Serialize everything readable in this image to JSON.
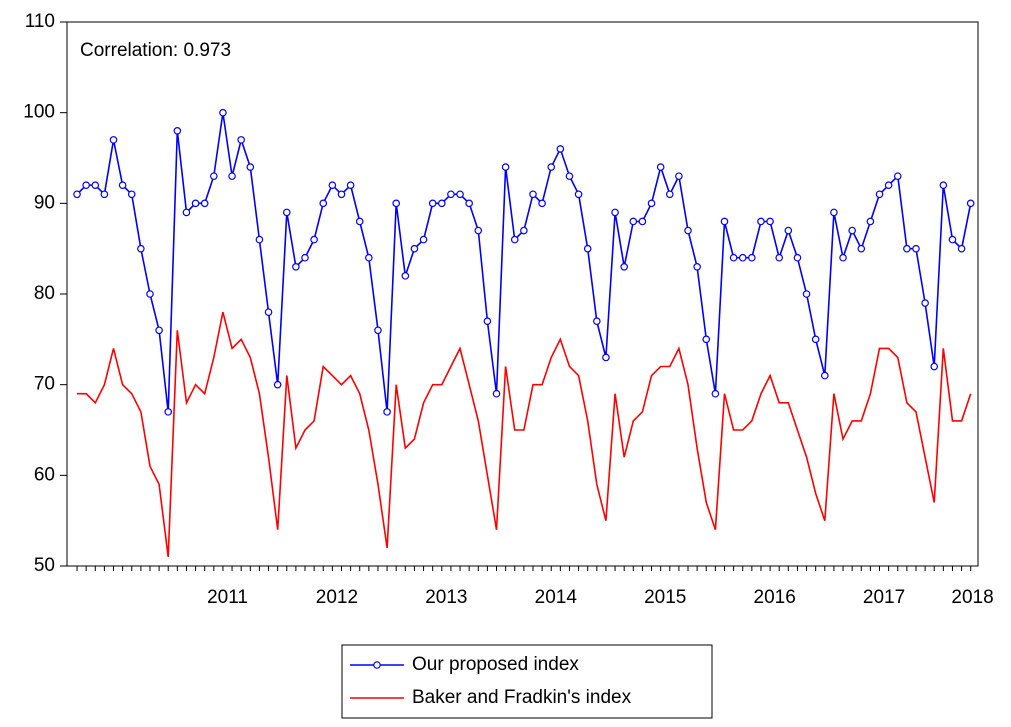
{
  "chart_data": {
    "type": "line",
    "annotation": "Correlation: 0.973",
    "categories": [
      null,
      null,
      null,
      null,
      null,
      null,
      null,
      null,
      null,
      null,
      null,
      null,
      null,
      null,
      null,
      null,
      null,
      null,
      null,
      null,
      null,
      null,
      null,
      null,
      null,
      null,
      null,
      null,
      null,
      null,
      null,
      null,
      null,
      null,
      null,
      null,
      null,
      null,
      null,
      null,
      null,
      null,
      null,
      null,
      null,
      null,
      null,
      null,
      null,
      null,
      null,
      null,
      null,
      null,
      null,
      null,
      null,
      null,
      null,
      null,
      null,
      null,
      null,
      null,
      null,
      null,
      null,
      null,
      null,
      null,
      null,
      null,
      null,
      null,
      null,
      null,
      null,
      null,
      null,
      null,
      null,
      null,
      null,
      null,
      null,
      null,
      null,
      null,
      null,
      null,
      null,
      null,
      null,
      null,
      null,
      null,
      null,
      null,
      null
    ],
    "xlim": [
      -1.1,
      98.8
    ],
    "xticks": [
      {
        "value": 16.5,
        "label": "2011"
      },
      {
        "value": 28.5,
        "label": "2012"
      },
      {
        "value": 40.5,
        "label": "2013"
      },
      {
        "value": 52.5,
        "label": "2014"
      },
      {
        "value": 64.5,
        "label": "2015"
      },
      {
        "value": 76.5,
        "label": "2016"
      },
      {
        "value": 88.5,
        "label": "2017"
      },
      {
        "value": 98.2,
        "label": "2018"
      }
    ],
    "ylim": [
      50,
      110
    ],
    "yticks": [
      50,
      60,
      70,
      80,
      90,
      100,
      110
    ],
    "legend": "bottom",
    "series": [
      {
        "name": "Our proposed index",
        "color": "#0000ff",
        "marker": "circle",
        "values": [
          91,
          92,
          92,
          91,
          97,
          92,
          91,
          85,
          80,
          76,
          67,
          98,
          89,
          90,
          90,
          93,
          100,
          93,
          97,
          94,
          86,
          78,
          70,
          89,
          83,
          84,
          86,
          90,
          92,
          91,
          92,
          88,
          84,
          76,
          67,
          90,
          82,
          85,
          86,
          90,
          90,
          91,
          91,
          90,
          87,
          77,
          69,
          94,
          86,
          87,
          91,
          90,
          94,
          96,
          93,
          91,
          85,
          77,
          73,
          89,
          83,
          88,
          88,
          90,
          94,
          91,
          93,
          87,
          83,
          75,
          69,
          88,
          84,
          84,
          84,
          88,
          88,
          84,
          87,
          84,
          80,
          75,
          71,
          89,
          84,
          87,
          85,
          88,
          91,
          92,
          93,
          85,
          85,
          79,
          72,
          92,
          86,
          85,
          90
        ]
      },
      {
        "name": "Baker and Fradkin's index",
        "color": "#ff0000",
        "marker": "none",
        "values": [
          69,
          69,
          68,
          70,
          74,
          70,
          69,
          67,
          61,
          59,
          51,
          76,
          68,
          70,
          69,
          73,
          78,
          74,
          75,
          73,
          69,
          62,
          54,
          71,
          63,
          65,
          66,
          72,
          71,
          70,
          71,
          69,
          65,
          59,
          52,
          70,
          63,
          64,
          68,
          70,
          70,
          72,
          74,
          70,
          66,
          60,
          54,
          72,
          65,
          65,
          70,
          70,
          73,
          75,
          72,
          71,
          66,
          59,
          55,
          69,
          62,
          66,
          67,
          71,
          72,
          72,
          74,
          70,
          63,
          57,
          54,
          69,
          65,
          65,
          66,
          69,
          71,
          68,
          68,
          65,
          62,
          58,
          55,
          69,
          64,
          66,
          66,
          69,
          74,
          74,
          73,
          68,
          67,
          62,
          57,
          74,
          66,
          66,
          69
        ]
      }
    ]
  }
}
